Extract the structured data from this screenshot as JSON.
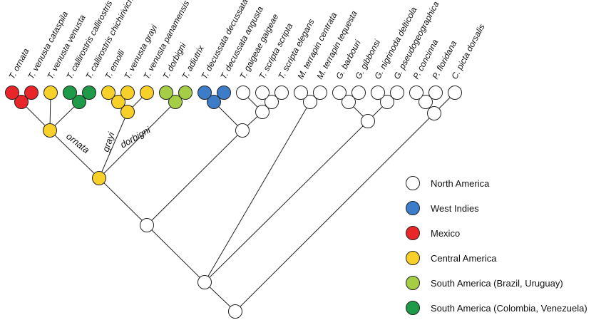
{
  "taxa": [
    "T. ornata",
    "T. venusta cataspila",
    "T. venusta venusta",
    "T. callirostris callirostris",
    "T. callirostris chichiriviche",
    "T. emolli",
    "T. venusta grayi",
    "T. venusta panamensis",
    "T. dorbigni",
    "T. adiutrix",
    "T. decussata decussata",
    "T. decussata angusta",
    "T. gaigeae gaigeae",
    "T. scripta scripta",
    "T. scripta elegans",
    "M. terrapin centrata",
    "M. terrapin tequesta",
    "G. barbouri",
    "G. gibbonsi",
    "G. nigrinoda delticola",
    "G. pseudogeographica",
    "P. concinna",
    "P. floridana",
    "C. picta dorsalis"
  ],
  "clade_labels": {
    "ornata": "ornata",
    "grayi": "grayi",
    "dorbigni": "dorbigni"
  },
  "regions": {
    "north_america": {
      "label": "North America",
      "color": "#ffffff"
    },
    "west_indies": {
      "label": "West Indies",
      "color": "#3d7cc9"
    },
    "mexico": {
      "label": "Mexico",
      "color": "#e8262a"
    },
    "central_america": {
      "label": "Central America",
      "color": "#f7d12a"
    },
    "south_america_bu": {
      "label": "South America (Brazil, Uruguay)",
      "color": "#a5cd46"
    },
    "south_america_cv": {
      "label": "South America (Colombia, Venezuela)",
      "color": "#1f9a48"
    }
  },
  "legend": [
    {
      "key": "north_america",
      "label": "North America"
    },
    {
      "key": "west_indies",
      "label": "West Indies"
    },
    {
      "key": "mexico",
      "label": "Mexico"
    },
    {
      "key": "central_america",
      "label": "Central America"
    },
    {
      "key": "south_america_bu",
      "label": "South America (Brazil, Uruguay)"
    },
    {
      "key": "south_america_cv",
      "label": "South America (Colombia, Venezuela)"
    }
  ]
}
